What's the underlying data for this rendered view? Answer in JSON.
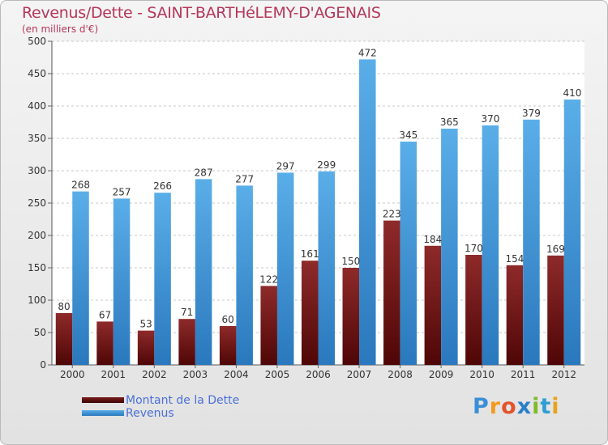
{
  "chart_data": {
    "type": "bar",
    "title": "Revenus/Dette - SAINT-BARTHéLEMY-D'AGENAIS",
    "subtitle": "(en milliers d'€)",
    "categories": [
      "2000",
      "2001",
      "2002",
      "2003",
      "2004",
      "2005",
      "2006",
      "2007",
      "2008",
      "2009",
      "2010",
      "2011",
      "2012"
    ],
    "series": [
      {
        "name": "Montant de la Dette",
        "color": "#8b1a1a",
        "values": [
          80,
          67,
          53,
          71,
          60,
          122,
          161,
          150,
          223,
          184,
          170,
          154,
          169
        ]
      },
      {
        "name": "Revenus",
        "color": "#4a9fe0",
        "values": [
          268,
          257,
          266,
          287,
          277,
          297,
          299,
          472,
          345,
          365,
          370,
          379,
          410
        ]
      }
    ],
    "ylim": [
      0,
      500
    ],
    "yticks": [
      0,
      50,
      100,
      150,
      200,
      250,
      300,
      350,
      400,
      450,
      500
    ],
    "grid": true,
    "legend_position": "bottom-left"
  },
  "logo": {
    "text": "Proxiti",
    "letters": [
      "P",
      "r",
      "o",
      "x",
      "i",
      "t",
      "i"
    ],
    "colors": [
      "#3b8fd6",
      "#f39a1e",
      "#e2542c",
      "#2a7fc9",
      "#7dbb2a",
      "#2f9ed6",
      "#e9a21c"
    ]
  }
}
